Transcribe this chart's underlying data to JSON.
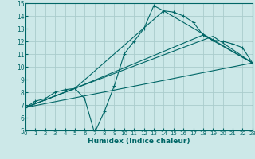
{
  "xlabel": "Humidex (Indice chaleur)",
  "bg_color": "#cce8e8",
  "grid_color": "#aacccc",
  "line_color": "#006666",
  "xlim": [
    0,
    23
  ],
  "ylim": [
    5,
    15
  ],
  "yticks": [
    5,
    6,
    7,
    8,
    9,
    10,
    11,
    12,
    13,
    14,
    15
  ],
  "xticks": [
    0,
    1,
    2,
    3,
    4,
    5,
    6,
    7,
    8,
    9,
    10,
    11,
    12,
    13,
    14,
    15,
    16,
    17,
    18,
    19,
    20,
    21,
    22,
    23
  ],
  "jagged": {
    "x": [
      0,
      1,
      2,
      3,
      4,
      5,
      6,
      7,
      8,
      9,
      10,
      11,
      12,
      13,
      14,
      15,
      16,
      17,
      18,
      19,
      20,
      21,
      22,
      23
    ],
    "y": [
      6.8,
      7.3,
      7.5,
      8.0,
      8.2,
      8.3,
      7.5,
      4.8,
      6.5,
      8.5,
      11.0,
      12.0,
      13.0,
      14.8,
      14.4,
      14.3,
      14.0,
      13.5,
      12.5,
      12.1,
      12.0,
      11.8,
      11.5,
      10.3
    ]
  },
  "straight_lines": [
    {
      "x": [
        0,
        5,
        14,
        23
      ],
      "y": [
        6.8,
        8.3,
        14.4,
        10.3
      ]
    },
    {
      "x": [
        0,
        5,
        18,
        23
      ],
      "y": [
        6.8,
        8.3,
        12.5,
        10.3
      ]
    },
    {
      "x": [
        0,
        5,
        19,
        23
      ],
      "y": [
        6.8,
        8.3,
        12.4,
        10.3
      ]
    },
    {
      "x": [
        0,
        23
      ],
      "y": [
        6.8,
        10.3
      ]
    }
  ]
}
